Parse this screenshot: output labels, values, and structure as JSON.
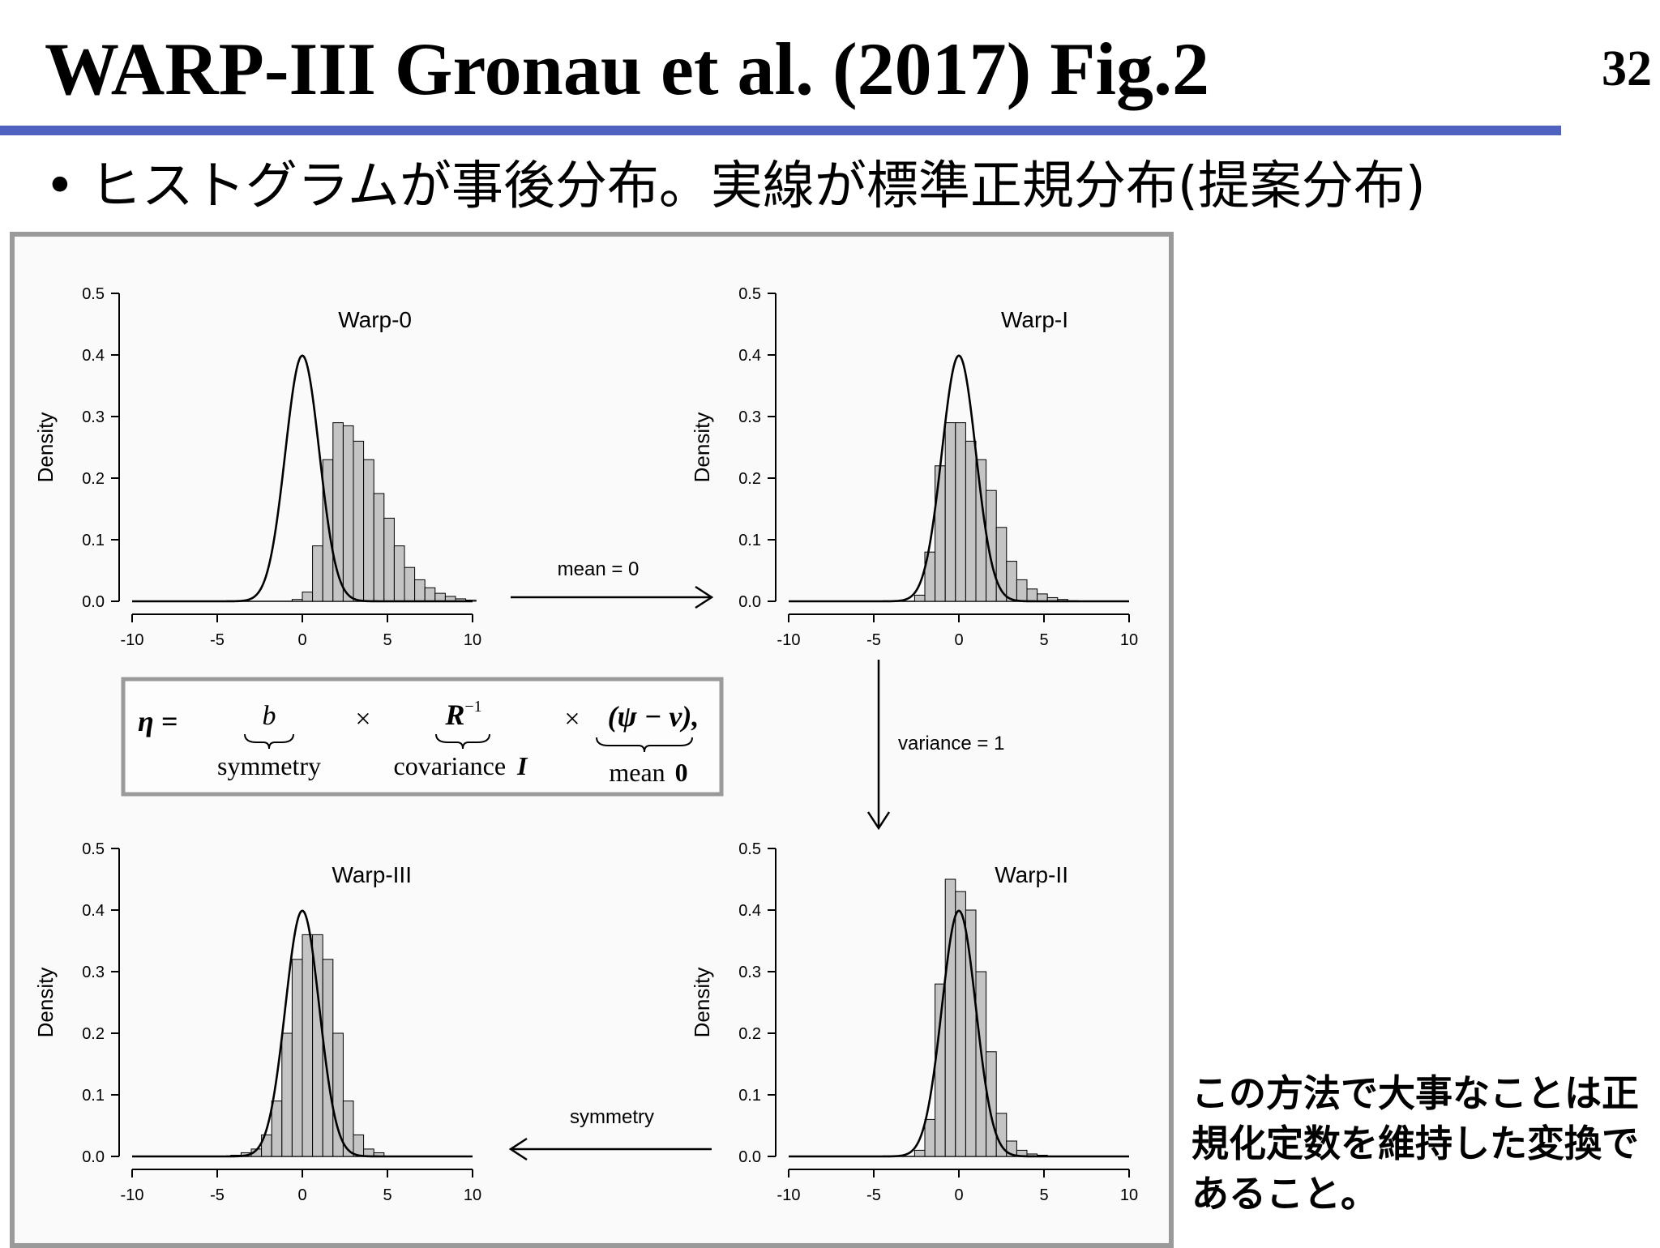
{
  "slide": {
    "title": "WARP-III Gronau et al. (2017) Fig.2",
    "page_number": "32",
    "bullet": "ヒストグラムが事後分布。実線が標準正規分布(提案分布)",
    "note": "この方法で大事なことは正規化定数を維持した変換であること。"
  },
  "colors": {
    "title_rule": "#4f62c0",
    "frame_border": "#9a9a9a",
    "histogram_fill": "#c4c4c4",
    "line": "#000000"
  },
  "formula": {
    "lhs": "η =",
    "term_b": "b",
    "times_1": "×",
    "term_r": "R",
    "term_r_sup": "−1",
    "times_2": "×",
    "term_diff": "(ψ − v),",
    "label_symmetry": "symmetry",
    "label_covariance": "covariance",
    "label_cov_i": "I",
    "label_mean": "mean",
    "label_mean_0": "0"
  },
  "arrows": {
    "top": "mean = 0",
    "right": "variance = 1",
    "bottom": "symmetry"
  },
  "chart_data": [
    {
      "type": "bar",
      "title": "Warp-0",
      "ylabel": "Density",
      "xlim": [
        -10,
        10
      ],
      "ylim": [
        0,
        0.5
      ],
      "xticks": [
        -10,
        -5,
        0,
        5,
        10
      ],
      "yticks": [
        0.0,
        0.1,
        0.2,
        0.3,
        0.4,
        0.5
      ],
      "bin_width": 0.6,
      "bin_start": -0.6,
      "values": [
        0.003,
        0.015,
        0.09,
        0.23,
        0.29,
        0.285,
        0.26,
        0.23,
        0.175,
        0.135,
        0.09,
        0.055,
        0.035,
        0.022,
        0.013,
        0.008,
        0.004,
        0.002
      ],
      "curve": {
        "type": "normal",
        "mean": 0,
        "sd": 1,
        "x_range": [
          -10,
          10
        ]
      }
    },
    {
      "type": "bar",
      "title": "Warp-I",
      "ylabel": "Density",
      "xlim": [
        -10,
        10
      ],
      "ylim": [
        0,
        0.5
      ],
      "xticks": [
        -10,
        -5,
        0,
        5,
        10
      ],
      "yticks": [
        0.0,
        0.1,
        0.2,
        0.3,
        0.4,
        0.5
      ],
      "bin_width": 0.6,
      "bin_start": -2.6,
      "values": [
        0.01,
        0.08,
        0.22,
        0.29,
        0.29,
        0.26,
        0.23,
        0.18,
        0.12,
        0.065,
        0.035,
        0.02,
        0.012,
        0.006,
        0.003,
        0.001
      ],
      "curve": {
        "type": "normal",
        "mean": 0,
        "sd": 1,
        "x_range": [
          -10,
          10
        ]
      }
    },
    {
      "type": "bar",
      "title": "Warp-II",
      "ylabel": "Density",
      "xlim": [
        -10,
        10
      ],
      "ylim": [
        0,
        0.5
      ],
      "xticks": [
        -10,
        -5,
        0,
        5,
        10
      ],
      "yticks": [
        0.0,
        0.1,
        0.2,
        0.3,
        0.4,
        0.5
      ],
      "bin_width": 0.6,
      "bin_start": -2.6,
      "values": [
        0.01,
        0.06,
        0.28,
        0.45,
        0.43,
        0.4,
        0.3,
        0.17,
        0.07,
        0.025,
        0.01,
        0.004,
        0.002
      ],
      "curve": {
        "type": "normal",
        "mean": 0,
        "sd": 1,
        "x_range": [
          -10,
          10
        ]
      }
    },
    {
      "type": "bar",
      "title": "Warp-III",
      "ylabel": "Density",
      "xlim": [
        -10,
        10
      ],
      "ylim": [
        0,
        0.5
      ],
      "xticks": [
        -10,
        -5,
        0,
        5,
        10
      ],
      "yticks": [
        0.0,
        0.1,
        0.2,
        0.3,
        0.4,
        0.5
      ],
      "bin_width": 0.6,
      "bin_start": -4.2,
      "values": [
        0.002,
        0.006,
        0.012,
        0.035,
        0.09,
        0.2,
        0.32,
        0.36,
        0.36,
        0.32,
        0.2,
        0.09,
        0.035,
        0.012,
        0.006
      ],
      "curve": {
        "type": "normal",
        "mean": 0,
        "sd": 1,
        "x_range": [
          -10,
          10
        ]
      }
    }
  ]
}
